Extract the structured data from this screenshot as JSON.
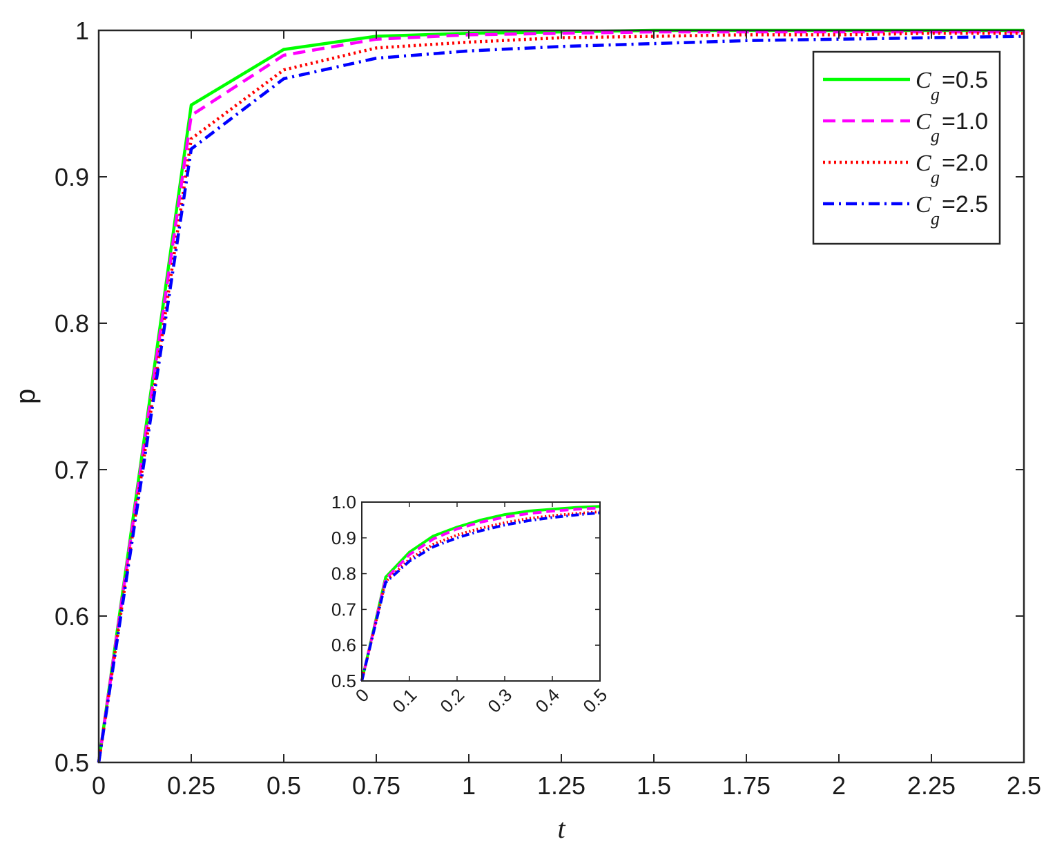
{
  "chart_data": [
    {
      "type": "line",
      "title": "",
      "xlabel": "t",
      "ylabel": "p",
      "xlim": [
        0,
        2.5
      ],
      "ylim": [
        0.5,
        1
      ],
      "xticks": [
        "0",
        "0.25",
        "0.5",
        "0.75",
        "1",
        "1.25",
        "1.5",
        "1.75",
        "2",
        "2.25",
        "2.5"
      ],
      "yticks": [
        "0.5",
        "0.6",
        "0.7",
        "0.8",
        "0.9",
        "1"
      ],
      "grid": false,
      "legend_position": "top-right",
      "x": [
        0,
        0.25,
        0.5,
        0.75,
        1.0,
        1.25,
        1.5,
        1.75,
        2.0,
        2.25,
        2.5
      ],
      "series": [
        {
          "name_symbol": "C",
          "name_subscript": "g",
          "name_value": "=0.5",
          "color": "#00ff00",
          "style": "solid",
          "values": [
            0.5,
            0.949,
            0.987,
            0.996,
            0.998,
            0.999,
            1.0,
            1.0,
            1.0,
            1.0,
            1.0
          ]
        },
        {
          "name_symbol": "C",
          "name_subscript": "g",
          "name_value": "=1.0",
          "color": "#ff00ff",
          "style": "dashed",
          "values": [
            0.5,
            0.942,
            0.983,
            0.994,
            0.997,
            0.998,
            0.999,
            0.999,
            0.999,
            0.999,
            0.999
          ]
        },
        {
          "name_symbol": "C",
          "name_subscript": "g",
          "name_value": "=2.0",
          "color": "#ff0000",
          "style": "dotted",
          "values": [
            0.5,
            0.926,
            0.973,
            0.988,
            0.992,
            0.995,
            0.996,
            0.997,
            0.997,
            0.998,
            0.998
          ]
        },
        {
          "name_symbol": "C",
          "name_subscript": "g",
          "name_value": "=2.5",
          "color": "#0000ff",
          "style": "dashdot",
          "values": [
            0.5,
            0.919,
            0.967,
            0.981,
            0.986,
            0.989,
            0.991,
            0.993,
            0.994,
            0.995,
            0.996
          ]
        }
      ]
    },
    {
      "type": "line",
      "title": "",
      "xlabel": "",
      "ylabel": "",
      "xlim": [
        0,
        0.5
      ],
      "ylim": [
        0.5,
        1.0
      ],
      "xticks": [
        "0",
        "0.1",
        "0.2",
        "0.3",
        "0.4",
        "0.5"
      ],
      "yticks": [
        "0.5",
        "0.6",
        "0.7",
        "0.8",
        "0.9",
        "1.0"
      ],
      "grid": false,
      "x": [
        0,
        0.05,
        0.1,
        0.15,
        0.2,
        0.25,
        0.3,
        0.35,
        0.4,
        0.45,
        0.5
      ],
      "series": [
        {
          "color": "#00ff00",
          "style": "solid",
          "values": [
            0.5,
            0.79,
            0.86,
            0.905,
            0.93,
            0.95,
            0.965,
            0.975,
            0.98,
            0.985,
            0.988
          ]
        },
        {
          "color": "#ff00ff",
          "style": "dashed",
          "values": [
            0.5,
            0.785,
            0.853,
            0.897,
            0.925,
            0.944,
            0.958,
            0.968,
            0.975,
            0.98,
            0.984
          ]
        },
        {
          "color": "#ff0000",
          "style": "dotted",
          "values": [
            0.5,
            0.778,
            0.84,
            0.882,
            0.908,
            0.927,
            0.942,
            0.954,
            0.962,
            0.968,
            0.973
          ]
        },
        {
          "color": "#0000ff",
          "style": "dashdot",
          "values": [
            0.5,
            0.775,
            0.835,
            0.875,
            0.9,
            0.92,
            0.936,
            0.948,
            0.957,
            0.964,
            0.97
          ]
        }
      ]
    }
  ]
}
